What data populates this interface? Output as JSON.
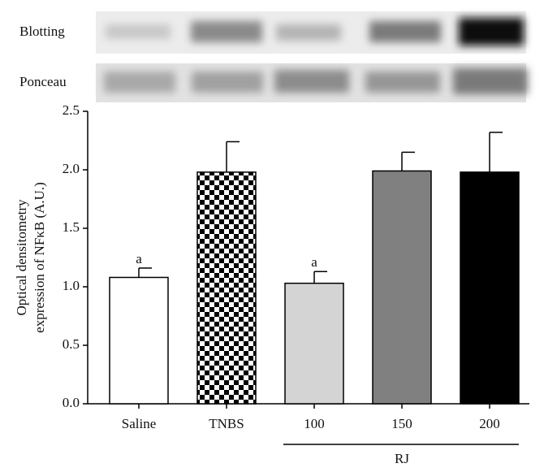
{
  "chart_data": {
    "type": "bar",
    "blot_rows": [
      "Blotting",
      "Ponceau"
    ],
    "y_label": [
      "Optical densitometry",
      "expression of NFκB (A.U.)"
    ],
    "categories": [
      "Saline",
      "TNBS",
      "100",
      "150",
      "200"
    ],
    "values": [
      1.08,
      1.98,
      1.03,
      1.99,
      1.98
    ],
    "errors": [
      0.08,
      0.26,
      0.1,
      0.16,
      0.34
    ],
    "colors": [
      "#ffffff",
      "checkerboard",
      "#d4d4d4",
      "#808080",
      "#000000"
    ],
    "annotations": [
      {
        "text": "a",
        "x": "Saline"
      },
      {
        "text": "a",
        "x": "100"
      }
    ],
    "group_label": {
      "text": "RJ",
      "from": "100",
      "to": "200"
    },
    "ylim": [
      0,
      2.5
    ],
    "yticks": [
      {
        "value": 0,
        "label": "0.0"
      },
      {
        "value": 0.5,
        "label": "0.5"
      },
      {
        "value": 1,
        "label": "1.0"
      },
      {
        "value": 1.5,
        "label": "1.5"
      },
      {
        "value": 2,
        "label": "2.0"
      },
      {
        "value": 2.5,
        "label": "2.5"
      }
    ]
  }
}
